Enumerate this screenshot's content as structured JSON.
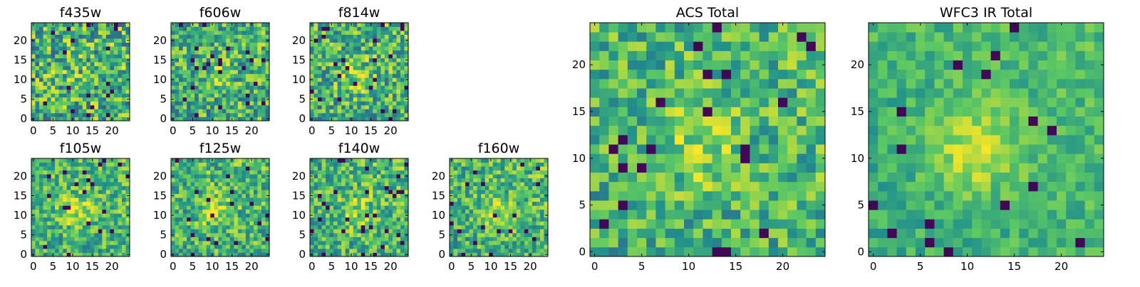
{
  "colormap": "viridis",
  "colors": [
    "#440154",
    "#3b528b",
    "#21918c",
    "#5ec962",
    "#fde725"
  ],
  "chart_data": [
    {
      "type": "heatmap",
      "title": "f435w",
      "xticks": [
        "0",
        "5",
        "10",
        "15",
        "20"
      ],
      "yticks": [
        "0",
        "5",
        "10",
        "15",
        "20"
      ],
      "xlim": [
        -0.5,
        24.5
      ],
      "ylim": [
        -0.5,
        24.5
      ],
      "grid": false,
      "pixels": [
        25,
        25
      ],
      "seed": 11,
      "noise": 0.34,
      "bump": 0.05
    },
    {
      "type": "heatmap",
      "title": "f606w",
      "xticks": [
        "0",
        "5",
        "10",
        "15",
        "20"
      ],
      "yticks": [
        "0",
        "5",
        "10",
        "15",
        "20"
      ],
      "xlim": [
        -0.5,
        24.5
      ],
      "ylim": [
        -0.5,
        24.5
      ],
      "grid": false,
      "pixels": [
        25,
        25
      ],
      "seed": 23,
      "noise": 0.3,
      "bump": 0.12
    },
    {
      "type": "heatmap",
      "title": "f814w",
      "xticks": [
        "0",
        "5",
        "10",
        "15",
        "20"
      ],
      "yticks": [
        "0",
        "5",
        "10",
        "15",
        "20"
      ],
      "xlim": [
        -0.5,
        24.5
      ],
      "ylim": [
        -0.5,
        24.5
      ],
      "grid": false,
      "pixels": [
        25,
        25
      ],
      "seed": 37,
      "noise": 0.3,
      "bump": 0.22
    },
    {
      "type": "heatmap",
      "title": "f105w",
      "xticks": [
        "0",
        "5",
        "10",
        "15",
        "20"
      ],
      "yticks": [
        "0",
        "5",
        "10",
        "15",
        "20"
      ],
      "xlim": [
        -0.5,
        24.5
      ],
      "ylim": [
        -0.5,
        24.5
      ],
      "grid": false,
      "pixels": [
        25,
        25
      ],
      "seed": 41,
      "noise": 0.24,
      "bump": 0.25
    },
    {
      "type": "heatmap",
      "title": "f125w",
      "xticks": [
        "0",
        "5",
        "10",
        "15",
        "20"
      ],
      "yticks": [
        "0",
        "5",
        "10",
        "15",
        "20"
      ],
      "xlim": [
        -0.5,
        24.5
      ],
      "ylim": [
        -0.5,
        24.5
      ],
      "grid": false,
      "pixels": [
        25,
        25
      ],
      "seed": 53,
      "noise": 0.26,
      "bump": 0.22
    },
    {
      "type": "heatmap",
      "title": "f140w",
      "xticks": [
        "0",
        "5",
        "10",
        "15",
        "20"
      ],
      "yticks": [
        "0",
        "5",
        "10",
        "15",
        "20"
      ],
      "xlim": [
        -0.5,
        24.5
      ],
      "ylim": [
        -0.5,
        24.5
      ],
      "grid": false,
      "pixels": [
        25,
        25
      ],
      "seed": 67,
      "noise": 0.26,
      "bump": 0.2
    },
    {
      "type": "heatmap",
      "title": "f160w",
      "xticks": [
        "0",
        "5",
        "10",
        "15",
        "20"
      ],
      "yticks": [
        "0",
        "5",
        "10",
        "15",
        "20"
      ],
      "xlim": [
        -0.5,
        24.5
      ],
      "ylim": [
        -0.5,
        24.5
      ],
      "grid": false,
      "pixels": [
        25,
        25
      ],
      "seed": 79,
      "noise": 0.25,
      "bump": 0.22
    },
    {
      "type": "heatmap",
      "title": "ACS Total",
      "xticks": [
        "0",
        "5",
        "10",
        "15",
        "20"
      ],
      "yticks": [
        "0",
        "5",
        "10",
        "15",
        "20"
      ],
      "xlim": [
        -0.5,
        24.5
      ],
      "ylim": [
        -0.5,
        24.5
      ],
      "grid": false,
      "pixels": [
        25,
        25
      ],
      "seed": 97,
      "noise": 0.24,
      "bump": 0.2
    },
    {
      "type": "heatmap",
      "title": "WFC3 IR Total",
      "xticks": [
        "0",
        "5",
        "10",
        "15",
        "20"
      ],
      "yticks": [
        "0",
        "5",
        "10",
        "15",
        "20"
      ],
      "xlim": [
        -0.5,
        24.5
      ],
      "ylim": [
        -0.5,
        24.5
      ],
      "grid": false,
      "pixels": [
        25,
        25
      ],
      "seed": 113,
      "noise": 0.14,
      "bump": 0.3
    }
  ]
}
